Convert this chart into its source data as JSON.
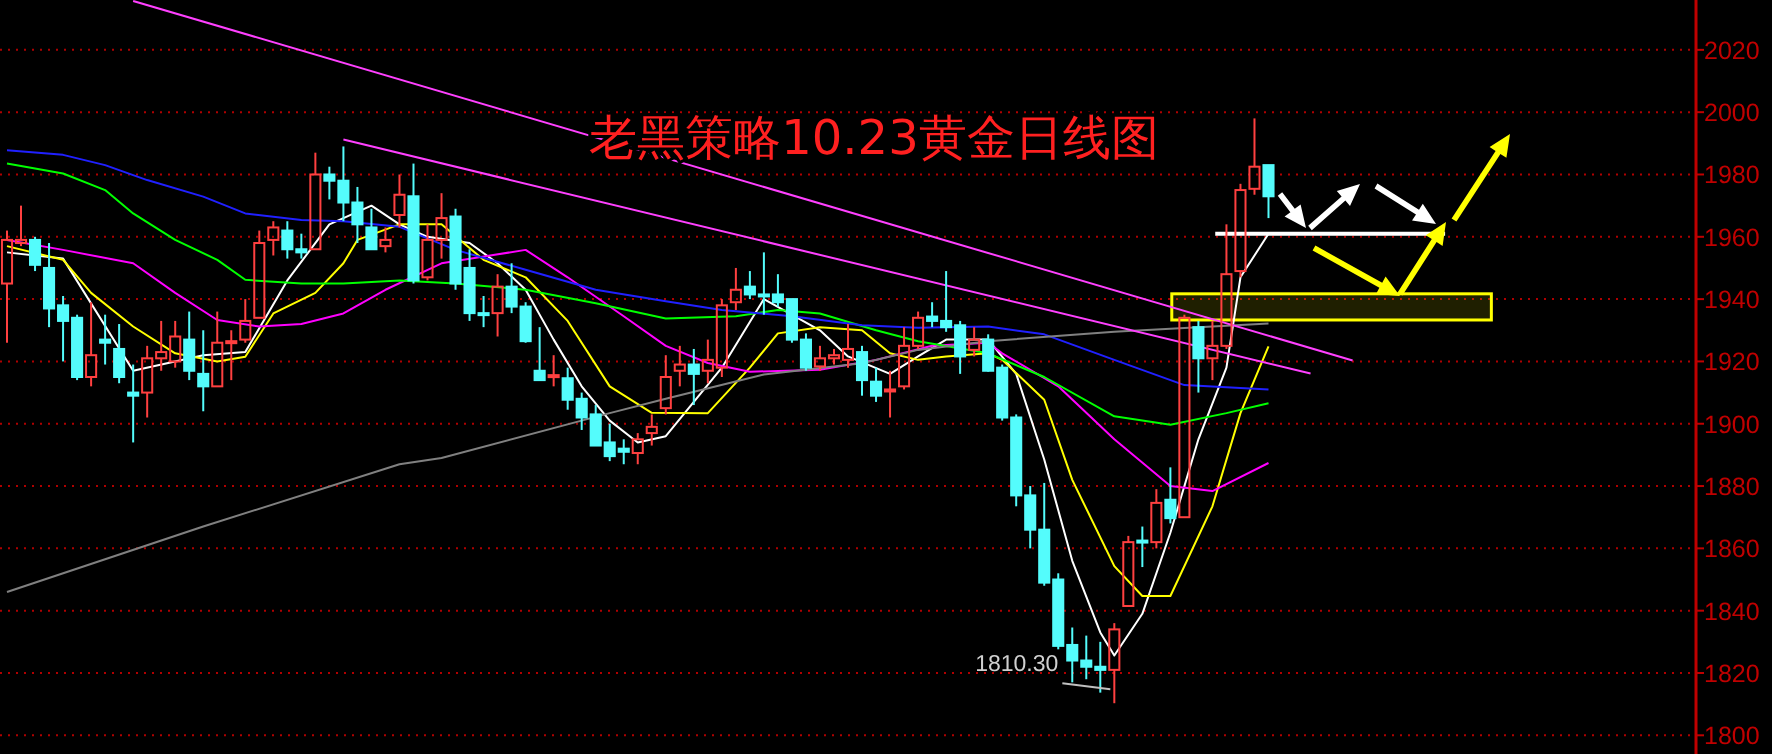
{
  "chart_data": {
    "type": "candlestick",
    "title": "老黑策略10.23黄金日线图",
    "categories": [
      null,
      null,
      null,
      null,
      null,
      null,
      null,
      null,
      null,
      null,
      null,
      null,
      null,
      null,
      null,
      null,
      null,
      null,
      null,
      null,
      null,
      null,
      null,
      null,
      null,
      null,
      null,
      null,
      null,
      null,
      null,
      null,
      null,
      null,
      null,
      null,
      null,
      null,
      null,
      null,
      null,
      null,
      null,
      null,
      null,
      null,
      null,
      null,
      null,
      null,
      null,
      null,
      null,
      null,
      null,
      null,
      null,
      null,
      null,
      null,
      null,
      null,
      null,
      null,
      null,
      null,
      null,
      null,
      null,
      null,
      null,
      null,
      null,
      null,
      null,
      null,
      null,
      null,
      null,
      null,
      null,
      null,
      null,
      null,
      null,
      null,
      null,
      null,
      null,
      null,
      null,
      null,
      null,
      null,
      null,
      null,
      null,
      null,
      null,
      null,
      null,
      null,
      null,
      null,
      null,
      null,
      null,
      null,
      null,
      null,
      null,
      null,
      null,
      null,
      null,
      null,
      null,
      null,
      null,
      null,
      null
    ],
    "ohlc": [
      [
        1945,
        1962,
        1926,
        1959
      ],
      [
        1958,
        1970,
        1957,
        1959
      ],
      [
        1959,
        1960,
        1949,
        1951
      ],
      [
        1950,
        1958,
        1931,
        1937
      ],
      [
        1938,
        1941,
        1920,
        1933
      ],
      [
        1934,
        1935,
        1914,
        1915
      ],
      [
        1915,
        1939,
        1912,
        1922
      ],
      [
        1927,
        1935,
        1919,
        1926
      ],
      [
        1924,
        1932,
        1913,
        1915
      ],
      [
        1910,
        1919,
        1894,
        1909
      ],
      [
        1910,
        1925,
        1902,
        1921
      ],
      [
        1921,
        1933,
        1917,
        1923
      ],
      [
        1920,
        1933,
        1918,
        1928
      ],
      [
        1927,
        1936,
        1914,
        1917
      ],
      [
        1916,
        1930,
        1904,
        1912
      ],
      [
        1912,
        1936,
        1912,
        1926
      ],
      [
        1926,
        1930,
        1914,
        1926.5
      ],
      [
        1927,
        1940,
        1926,
        1933
      ],
      [
        1934,
        1962,
        1934,
        1958
      ],
      [
        1959,
        1965,
        1954,
        1963
      ],
      [
        1962,
        1965,
        1953,
        1956
      ],
      [
        1956,
        1961,
        1953,
        1955
      ],
      [
        1956,
        1987,
        1956,
        1980
      ],
      [
        1980,
        1982.5,
        1972,
        1978
      ],
      [
        1978,
        1989,
        1965,
        1971
      ],
      [
        1971,
        1976,
        1958,
        1964
      ],
      [
        1963,
        1969,
        1956,
        1956
      ],
      [
        1957,
        1963,
        1955,
        1959
      ],
      [
        1967,
        1980,
        1963,
        1973.5
      ],
      [
        1973,
        1983.5,
        1945,
        1946
      ],
      [
        1947,
        1964,
        1946,
        1959
      ],
      [
        1959,
        1974,
        1953,
        1966
      ],
      [
        1966.5,
        1969,
        1943,
        1945
      ],
      [
        1950,
        1956,
        1933,
        1935.5
      ],
      [
        1935.5,
        1941,
        1931,
        1935
      ],
      [
        1935.5,
        1948,
        1928,
        1944
      ],
      [
        1944,
        1951.5,
        1935.5,
        1937.6
      ],
      [
        1937.6,
        1939,
        1926,
        1926.5
      ],
      [
        1917,
        1931,
        1914,
        1914
      ],
      [
        1915,
        1922,
        1912,
        1915.6
      ],
      [
        1914.6,
        1918,
        1904.5,
        1907.7
      ],
      [
        1908,
        1910,
        1898,
        1902
      ],
      [
        1903,
        1906,
        1893,
        1893
      ],
      [
        1894,
        1900,
        1888,
        1889.6
      ],
      [
        1892,
        1895,
        1887,
        1891
      ],
      [
        1890.6,
        1897,
        1887,
        1895
      ],
      [
        1897,
        1903,
        1893,
        1899
      ],
      [
        1905,
        1922,
        1903,
        1915
      ],
      [
        1917,
        1925,
        1912,
        1919
      ],
      [
        1919,
        1924,
        1906,
        1916
      ],
      [
        1917,
        1927,
        1913,
        1920.5
      ],
      [
        1918,
        1940,
        1915,
        1938
      ],
      [
        1939,
        1950,
        1936.5,
        1943
      ],
      [
        1944,
        1949,
        1940,
        1941.5
      ],
      [
        1941.5,
        1955,
        1935,
        1941
      ],
      [
        1941.5,
        1948,
        1937.6,
        1939
      ],
      [
        1940,
        1940,
        1926,
        1927
      ],
      [
        1927,
        1929,
        1917,
        1918
      ],
      [
        1918.4,
        1925,
        1917,
        1921
      ],
      [
        1921,
        1924,
        1919,
        1922
      ],
      [
        1920.5,
        1932,
        1918,
        1924
      ],
      [
        1923,
        1925,
        1909,
        1914
      ],
      [
        1913.5,
        1918,
        1907,
        1909
      ],
      [
        1910.5,
        1917,
        1902,
        1911
      ],
      [
        1912,
        1931,
        1911,
        1925
      ],
      [
        1925,
        1936,
        1924,
        1934
      ],
      [
        1934.4,
        1939,
        1931,
        1933
      ],
      [
        1933,
        1949,
        1929.5,
        1931
      ],
      [
        1931.6,
        1933,
        1916,
        1921.6
      ],
      [
        1923.7,
        1931,
        1921.6,
        1927
      ],
      [
        1927,
        1928.7,
        1916.7,
        1917
      ],
      [
        1918,
        1919,
        1901,
        1902
      ],
      [
        1902,
        1903,
        1873.5,
        1877
      ],
      [
        1877,
        1880,
        1860,
        1866
      ],
      [
        1866,
        1881,
        1848,
        1849
      ],
      [
        1850,
        1852,
        1827.6,
        1828.7
      ],
      [
        1829,
        1834.6,
        1817,
        1824
      ],
      [
        1824,
        1832,
        1818,
        1822
      ],
      [
        1822,
        1830,
        1813.7,
        1821
      ],
      [
        1821,
        1836,
        1810.3,
        1834
      ],
      [
        1841.5,
        1864,
        1841.5,
        1862
      ],
      [
        1862.5,
        1867,
        1854,
        1862
      ],
      [
        1862,
        1879,
        1860,
        1874.6
      ],
      [
        1875.6,
        1886,
        1868,
        1869.7
      ],
      [
        1870,
        1935,
        1870,
        1934
      ],
      [
        1931,
        1933,
        1910,
        1921
      ],
      [
        1921,
        1933,
        1914,
        1925
      ],
      [
        1925,
        1964,
        1924,
        1948
      ],
      [
        1949,
        1977,
        1947,
        1975
      ],
      [
        1975.4,
        1998,
        1973.5,
        1982.5
      ],
      [
        1983,
        1983,
        1966,
        1973
      ],
      null,
      null,
      null,
      null,
      null,
      null,
      null,
      null,
      null,
      null,
      null,
      null,
      null,
      null,
      null,
      null,
      null,
      null,
      null,
      null,
      null,
      null,
      null,
      null,
      null,
      null,
      null,
      null,
      null,
      null
    ],
    "colors": [
      "#ff4040",
      "#ff4040",
      "#54fcfc",
      "#54fcfc",
      "#54fcfc",
      "#54fcfc",
      "#ff4040",
      "#54fcfc",
      "#54fcfc",
      "#54fcfc",
      "#ff4040",
      "#ff4040",
      "#ff4040",
      "#54fcfc",
      "#54fcfc",
      "#ff4040",
      "#ff4040",
      "#ff4040",
      "#ff4040",
      "#ff4040",
      "#54fcfc",
      "#54fcfc",
      "#ff4040",
      "#54fcfc",
      "#54fcfc",
      "#54fcfc",
      "#54fcfc",
      "#ff4040",
      "#ff4040",
      "#54fcfc",
      "#ff4040",
      "#ff4040",
      "#54fcfc",
      "#54fcfc",
      "#54fcfc",
      "#ff4040",
      "#54fcfc",
      "#54fcfc",
      "#54fcfc",
      "#ff4040",
      "#54fcfc",
      "#54fcfc",
      "#54fcfc",
      "#54fcfc",
      "#54fcfc",
      "#ff4040",
      "#ff4040",
      "#ff4040",
      "#ff4040",
      "#54fcfc",
      "#ff4040",
      "#ff4040",
      "#ff4040",
      "#54fcfc",
      "#54fcfc",
      "#54fcfc",
      "#54fcfc",
      "#54fcfc",
      "#ff4040",
      "#ff4040",
      "#ff4040",
      "#54fcfc",
      "#54fcfc",
      "#ff4040",
      "#ff4040",
      "#ff4040",
      "#54fcfc",
      "#54fcfc",
      "#54fcfc",
      "#ff4040",
      "#54fcfc",
      "#54fcfc",
      "#54fcfc",
      "#54fcfc",
      "#54fcfc",
      "#54fcfc",
      "#54fcfc",
      "#54fcfc",
      "#54fcfc",
      "#ff4040",
      "#ff4040",
      "#54fcfc",
      "#ff4040",
      "#54fcfc",
      "#ff4040",
      "#54fcfc",
      "#ff4040",
      "#ff4040",
      "#ff4040",
      "#ff4040",
      "#54fcfc",
      null,
      null,
      null,
      null,
      null,
      null,
      null,
      null,
      null,
      null,
      null,
      null,
      null,
      null,
      null,
      null,
      null,
      null,
      null,
      null,
      null,
      null,
      null,
      null,
      null,
      null,
      null,
      null,
      null,
      null
    ],
    "series": [
      {
        "type": "line",
        "color": "#ffffff",
        "values": [
          1955,
          null,
          null,
          null,
          1953,
          null,
          null,
          null,
          null,
          1917,
          null,
          null,
          null,
          null,
          1922,
          null,
          null,
          1923,
          null,
          null,
          1946,
          null,
          null,
          1964,
          null,
          null,
          1970,
          null,
          1964,
          null,
          1960,
          null,
          null,
          1958,
          null,
          1951.5,
          null,
          1943,
          null,
          1927,
          null,
          1912,
          null,
          1901,
          null,
          1894,
          null,
          1896,
          null,
          null,
          null,
          1918,
          null,
          null,
          1940,
          null,
          null,
          null,
          1930,
          null,
          1921.6,
          null,
          null,
          1916,
          null,
          1921.6,
          null,
          1927,
          null,
          null,
          1927,
          null,
          1916,
          null,
          1888.5,
          null,
          1856,
          null,
          1833,
          1825.6,
          null,
          1839,
          null,
          1865,
          null,
          1895,
          null,
          1918,
          1947,
          null,
          1961,
          null,
          null,
          null,
          null,
          null,
          null,
          null,
          null,
          null,
          null,
          null,
          null,
          null,
          null,
          null,
          null,
          null,
          null,
          null,
          null,
          null,
          null,
          null,
          null,
          null,
          null,
          null,
          null,
          null,
          null
        ]
      },
      {
        "type": "line",
        "color": "#ffff00",
        "values": [
          1957,
          null,
          null,
          null,
          1952.6,
          null,
          1942,
          null,
          null,
          1931.2,
          null,
          null,
          1922.6,
          null,
          null,
          1920,
          null,
          1921.5,
          null,
          1935.4,
          null,
          null,
          1942,
          null,
          1951.5,
          1959,
          null,
          null,
          1964,
          null,
          null,
          1964,
          null,
          null,
          1952.6,
          null,
          null,
          1947,
          null,
          null,
          1933,
          null,
          null,
          1912,
          null,
          null,
          1903.5,
          null,
          null,
          null,
          1903.4,
          null,
          null,
          1918,
          null,
          1929,
          null,
          null,
          1931,
          null,
          null,
          1930,
          null,
          1922.6,
          null,
          1920.5,
          null,
          1921.6,
          null,
          null,
          1922.6,
          1920.5,
          null,
          null,
          1907.7,
          null,
          1882,
          null,
          null,
          1854.3,
          null,
          1844.7,
          null,
          1844.7,
          null,
          null,
          1873.5,
          null,
          1903.4,
          null,
          1924.8,
          null,
          null,
          null,
          null,
          null,
          null,
          null,
          null,
          null,
          null,
          null,
          null,
          null,
          null,
          null,
          null,
          null,
          null,
          null,
          null,
          null,
          null,
          null,
          null,
          null,
          null,
          null,
          null,
          null,
          null
        ]
      },
      {
        "type": "line",
        "color": "#ff00ff",
        "values": [
          1959,
          null,
          null,
          null,
          1955.8,
          null,
          null,
          null,
          null,
          1951.5,
          null,
          null,
          1942,
          null,
          null,
          1933.3,
          null,
          null,
          1931.2,
          null,
          null,
          1932,
          null,
          null,
          1935.4,
          null,
          null,
          1943,
          null,
          null,
          null,
          1951.5,
          null,
          null,
          null,
          null,
          null,
          1955.8,
          null,
          null,
          1947,
          null,
          null,
          null,
          1934.5,
          null,
          null,
          1925,
          null,
          null,
          1919.5,
          null,
          null,
          1916.7,
          null,
          null,
          null,
          null,
          1917.3,
          null,
          null,
          null,
          1920.5,
          null,
          null,
          null,
          1925,
          null,
          null,
          null,
          1926,
          1922.6,
          null,
          null,
          null,
          1912,
          null,
          null,
          null,
          1895,
          null,
          null,
          null,
          1880,
          null,
          null,
          1878.4,
          null,
          null,
          null,
          1887.4,
          null,
          null,
          null,
          null,
          null,
          null,
          null,
          null,
          null,
          null,
          null,
          null,
          null,
          null,
          null,
          null,
          null,
          null,
          null,
          null,
          null,
          null,
          null,
          null,
          null,
          null,
          null,
          null,
          null,
          null
        ]
      },
      {
        "type": "line",
        "color": "#00ff00",
        "values": [
          1983.5,
          null,
          null,
          null,
          1980.3,
          null,
          null,
          1975,
          null,
          1967.5,
          null,
          null,
          1959,
          null,
          null,
          1952.6,
          null,
          1946.2,
          null,
          null,
          null,
          1945,
          null,
          null,
          1945,
          null,
          null,
          null,
          1946,
          null,
          null,
          null,
          1945,
          null,
          null,
          null,
          null,
          1943,
          null,
          null,
          null,
          null,
          1938.7,
          null,
          null,
          null,
          null,
          1933.8,
          null,
          null,
          null,
          null,
          1934.5,
          null,
          null,
          1936.5,
          null,
          null,
          1935.4,
          null,
          null,
          null,
          1930,
          null,
          null,
          1926.5,
          null,
          null,
          null,
          null,
          1922.6,
          null,
          null,
          null,
          1915,
          null,
          null,
          null,
          null,
          1902.4,
          null,
          null,
          null,
          1899.7,
          null,
          null,
          null,
          1903.4,
          null,
          null,
          1906.6,
          null,
          null,
          null,
          null,
          null,
          null,
          null,
          null,
          null,
          null,
          null,
          null,
          null,
          null,
          null,
          null,
          null,
          null,
          null,
          null,
          null,
          null,
          null,
          null,
          null,
          null,
          null,
          null,
          null,
          null
        ]
      },
      {
        "type": "line",
        "color": "#2020ff",
        "values": [
          1987.8,
          null,
          null,
          null,
          1986.3,
          null,
          null,
          1983,
          null,
          null,
          1978.2,
          null,
          null,
          null,
          1972.9,
          null,
          null,
          1967.5,
          null,
          null,
          null,
          1965.4,
          null,
          null,
          1965,
          null,
          null,
          null,
          1963.2,
          null,
          null,
          null,
          1955.8,
          null,
          null,
          null,
          null,
          1949.4,
          null,
          null,
          null,
          null,
          1943,
          null,
          null,
          null,
          null,
          1939.3,
          null,
          null,
          null,
          1936.5,
          null,
          null,
          null,
          null,
          1934.5,
          null,
          null,
          null,
          null,
          1931.6,
          null,
          null,
          null,
          1930.8,
          null,
          null,
          null,
          null,
          1931.2,
          null,
          null,
          null,
          1928.7,
          null,
          null,
          null,
          null,
          1920.5,
          null,
          null,
          null,
          null,
          1912.4,
          null,
          null,
          null,
          null,
          null,
          1911,
          null,
          null,
          null,
          null,
          null,
          null,
          null,
          null,
          null,
          null,
          null,
          null,
          null,
          null,
          null,
          null,
          null,
          null,
          null,
          null,
          null,
          null,
          null,
          null,
          null,
          null,
          null,
          null,
          null,
          null
        ]
      },
      {
        "type": "line",
        "color": "#808080",
        "values": [
          1846,
          null,
          null,
          null,
          null,
          null,
          null,
          null,
          null,
          null,
          null,
          null,
          null,
          null,
          1867,
          null,
          null,
          null,
          null,
          null,
          null,
          null,
          null,
          null,
          null,
          null,
          null,
          null,
          1887,
          null,
          null,
          1889,
          null,
          null,
          null,
          null,
          null,
          null,
          null,
          null,
          null,
          null,
          null,
          1903.4,
          null,
          null,
          null,
          1908,
          null,
          null,
          null,
          null,
          null,
          null,
          1915.8,
          null,
          null,
          null,
          null,
          null,
          null,
          1919.4,
          null,
          null,
          null,
          1923.7,
          null,
          null,
          null,
          null,
          1926.5,
          null,
          null,
          null,
          null,
          null,
          null,
          null,
          null,
          1929.5,
          null,
          null,
          null,
          null,
          null,
          null,
          null,
          null,
          null,
          null,
          1932.2,
          null,
          null,
          null,
          null,
          null,
          null,
          null,
          null,
          null,
          null,
          null,
          null,
          null,
          null,
          null,
          null,
          null,
          null,
          null,
          null,
          null,
          null,
          null,
          null,
          null,
          null,
          null,
          null,
          null,
          null
        ]
      },
      {
        "type": "line",
        "color": "#ff40ff",
        "values": [
          null,
          null,
          null,
          null,
          null,
          null,
          null,
          null,
          null,
          2035.7,
          null,
          null,
          null,
          null,
          null,
          null,
          null,
          null,
          null,
          null,
          null,
          null,
          null,
          null,
          null,
          null,
          null,
          null,
          null,
          null,
          null,
          null,
          null,
          null,
          null,
          null,
          null,
          null,
          null,
          null,
          null,
          null,
          null,
          null,
          null,
          null,
          null,
          null,
          null,
          null,
          null,
          null,
          null,
          null,
          null,
          null,
          null,
          null,
          null,
          null,
          null,
          null,
          null,
          null,
          null,
          null,
          null,
          null,
          null,
          null,
          null,
          null,
          null,
          null,
          null,
          null,
          null,
          null,
          null,
          null,
          null,
          null,
          null,
          null,
          null,
          null,
          null,
          null,
          null,
          null,
          null,
          null,
          null,
          null,
          null,
          null,
          1920.3,
          null,
          null,
          null,
          null,
          null,
          null,
          null,
          null,
          null,
          null,
          null,
          null,
          null,
          null,
          null,
          null,
          null,
          null,
          null,
          null,
          null,
          null,
          null,
          null
        ]
      },
      {
        "type": "line",
        "color": "#ff40ff",
        "values": [
          null,
          null,
          null,
          null,
          null,
          null,
          null,
          null,
          null,
          null,
          null,
          null,
          null,
          null,
          null,
          null,
          null,
          null,
          null,
          null,
          null,
          null,
          null,
          null,
          1991.2,
          null,
          null,
          null,
          null,
          null,
          null,
          null,
          null,
          null,
          null,
          null,
          null,
          null,
          null,
          null,
          null,
          null,
          null,
          null,
          null,
          null,
          null,
          null,
          null,
          null,
          null,
          null,
          null,
          null,
          null,
          null,
          null,
          null,
          null,
          null,
          null,
          null,
          null,
          null,
          null,
          null,
          null,
          null,
          null,
          null,
          null,
          null,
          null,
          null,
          null,
          null,
          null,
          null,
          null,
          null,
          null,
          null,
          null,
          null,
          null,
          null,
          null,
          null,
          null,
          null,
          null,
          null,
          null,
          1916.1,
          null,
          null,
          null,
          null,
          null,
          null,
          null,
          null,
          null,
          null,
          null,
          null,
          null,
          null,
          null,
          null,
          null,
          null,
          null,
          null,
          null,
          null,
          null,
          null,
          null,
          null,
          null
        ]
      }
    ],
    "ref_lines": [
      {
        "axis": "y",
        "value": 1961,
        "color": "#ffffff"
      }
    ],
    "bands": [
      {
        "axis": "y",
        "from": 1933.3,
        "to": 1941.7,
        "color": "#ffff00"
      }
    ],
    "ylim": [
      1794,
      2036
    ],
    "yticks": [
      1800,
      1820,
      1840,
      1860,
      1880,
      1900,
      1920,
      1940,
      1960,
      1980,
      2000,
      2020
    ],
    "grid": "y",
    "marker": "none",
    "line_style": "solid",
    "tick_labels": "y",
    "annotations": [
      "1810.30"
    ]
  }
}
